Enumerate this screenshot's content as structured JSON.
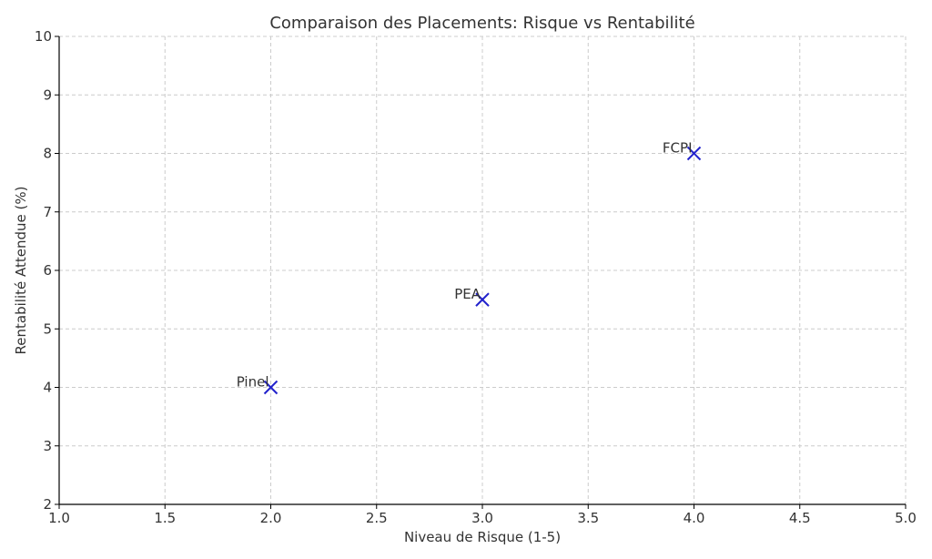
{
  "chart_data": {
    "type": "scatter",
    "title": "Comparaison des Placements: Risque vs Rentabilité",
    "xlabel": "Niveau de Risque (1-5)",
    "ylabel": "Rentabilité Attendue (%)",
    "xlim": [
      1.0,
      5.0
    ],
    "ylim": [
      2,
      10
    ],
    "xticks": [
      1.0,
      1.5,
      2.0,
      2.5,
      3.0,
      3.5,
      4.0,
      4.5,
      5.0
    ],
    "xtick_labels": [
      "1.0",
      "1.5",
      "2.0",
      "2.5",
      "3.0",
      "3.5",
      "4.0",
      "4.5",
      "5.0"
    ],
    "yticks": [
      2,
      3,
      4,
      5,
      6,
      7,
      8,
      9,
      10
    ],
    "ytick_labels": [
      "2",
      "3",
      "4",
      "5",
      "6",
      "7",
      "8",
      "9",
      "10"
    ],
    "grid": true,
    "marker": "x",
    "marker_color": "#2222cc",
    "points": [
      {
        "label": "Pinel",
        "x": 2.0,
        "y": 4.0
      },
      {
        "label": "PEA",
        "x": 3.0,
        "y": 5.5
      },
      {
        "label": "FCPI",
        "x": 4.0,
        "y": 8.0
      }
    ]
  }
}
